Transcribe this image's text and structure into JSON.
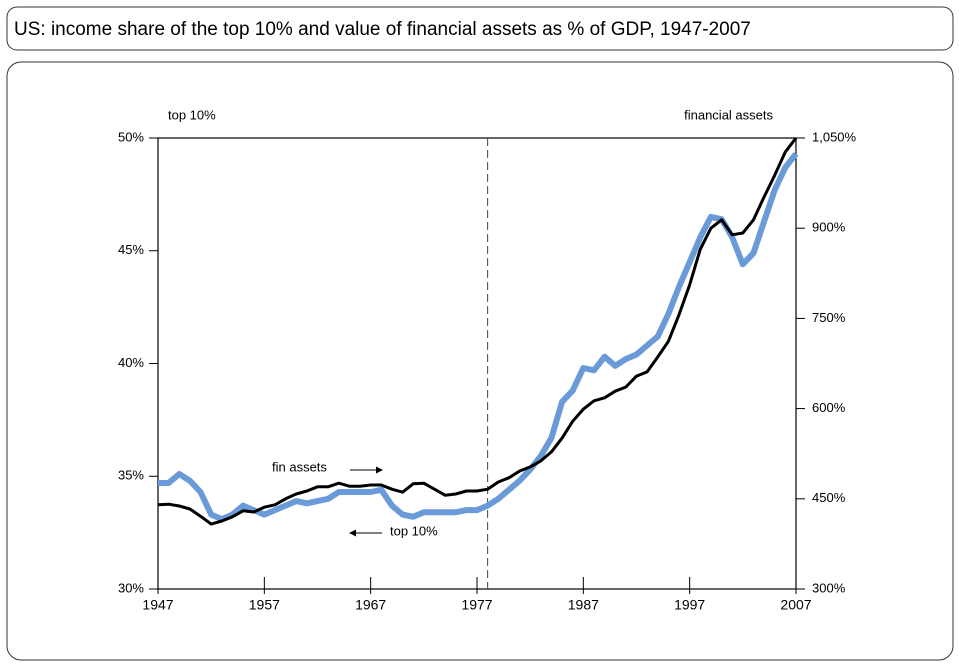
{
  "chart_data": {
    "type": "line",
    "title": "US: income share of the top 10% and value of financial assets as % of GDP, 1947-2007",
    "y_axis_label": "top 10%",
    "y2_axis_label": "financial assets",
    "annotations": [
      "fin assets",
      "top 10%"
    ],
    "x": [
      1947,
      1948,
      1949,
      1950,
      1951,
      1952,
      1953,
      1954,
      1955,
      1956,
      1957,
      1958,
      1959,
      1960,
      1961,
      1962,
      1963,
      1964,
      1965,
      1966,
      1967,
      1968,
      1969,
      1970,
      1971,
      1972,
      1973,
      1974,
      1975,
      1976,
      1977,
      1978,
      1979,
      1980,
      1981,
      1982,
      1983,
      1984,
      1985,
      1986,
      1987,
      1988,
      1989,
      1990,
      1991,
      1992,
      1993,
      1994,
      1995,
      1996,
      1997,
      1998,
      1999,
      2000,
      2001,
      2002,
      2003,
      2004,
      2005,
      2006,
      2007
    ],
    "series": [
      {
        "name": "top 10%",
        "color": "#6a9ad8",
        "values": [
          34.7,
          34.7,
          35.1,
          34.8,
          34.3,
          33.3,
          33.1,
          33.3,
          33.7,
          33.5,
          33.3,
          33.5,
          33.7,
          33.9,
          33.8,
          33.9,
          34.0,
          34.3,
          34.3,
          34.3,
          34.3,
          34.4,
          33.7,
          33.3,
          33.2,
          33.4,
          33.4,
          33.4,
          33.4,
          33.5,
          33.5,
          33.7,
          34.0,
          34.4,
          34.8,
          35.3,
          35.9,
          36.7,
          38.3,
          38.8,
          39.8,
          39.7,
          40.3,
          39.9,
          40.2,
          40.4,
          40.8,
          41.2,
          42.2,
          43.4,
          44.5,
          45.6,
          46.5,
          46.4,
          45.6,
          44.4,
          44.9,
          46.3,
          47.7,
          48.7,
          49.3
        ]
      },
      {
        "name": "fin assets",
        "color": "#000000",
        "axis": "y2",
        "values": [
          440,
          441,
          438,
          433,
          421,
          408,
          413,
          420,
          430,
          428,
          436,
          440,
          450,
          458,
          463,
          470,
          470,
          476,
          471,
          471,
          473,
          473,
          466,
          461,
          475,
          476,
          466,
          456,
          458,
          463,
          463,
          466,
          478,
          485,
          496,
          503,
          513,
          528,
          551,
          579,
          599,
          613,
          618,
          629,
          636,
          654,
          661,
          686,
          712,
          756,
          806,
          865,
          900,
          914,
          889,
          892,
          914,
          952,
          988,
          1027,
          1050
        ]
      }
    ],
    "vline_x": 1978,
    "xlim": [
      1947,
      2007
    ],
    "xticks": [
      1947,
      1957,
      1967,
      1977,
      1987,
      1997,
      2007
    ],
    "ylim": [
      30,
      50
    ],
    "yticks": [
      {
        "value": 30,
        "label": "30%"
      },
      {
        "value": 35,
        "label": "35%"
      },
      {
        "value": 40,
        "label": "40%"
      },
      {
        "value": 45,
        "label": "45%"
      },
      {
        "value": 50,
        "label": "50%"
      }
    ],
    "y2lim": [
      300,
      1050
    ],
    "y2ticks": [
      {
        "value": 300,
        "label": "300%"
      },
      {
        "value": 450,
        "label": "450%"
      },
      {
        "value": 600,
        "label": "600%"
      },
      {
        "value": 750,
        "label": "750%"
      },
      {
        "value": 900,
        "label": "900%"
      },
      {
        "value": 1050,
        "label": "1,050%"
      }
    ]
  }
}
